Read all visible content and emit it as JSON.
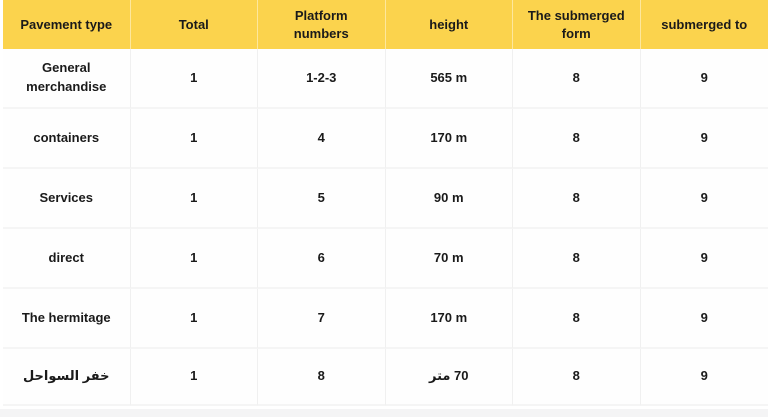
{
  "colors": {
    "header_bg": "#FBD34D",
    "cell_bg": "#FEFEFE",
    "border_v": "#F0F0F0",
    "border_h": "#F5F5F5",
    "page_bg": "#F4F4F5",
    "text": "#1A1A1A"
  },
  "table": {
    "columns": [
      {
        "label": "Pavement type"
      },
      {
        "label": "Total"
      },
      {
        "label": "Platform numbers"
      },
      {
        "label": "height"
      },
      {
        "label": "The submerged form"
      },
      {
        "label": "submerged to"
      }
    ],
    "rows": [
      [
        "General merchandise",
        "1",
        "1-2-3",
        "565 m",
        "8",
        "9"
      ],
      [
        "containers",
        "1",
        "4",
        "170 m",
        "8",
        "9"
      ],
      [
        "Services",
        "1",
        "5",
        "90 m",
        "8",
        "9"
      ],
      [
        "direct",
        "1",
        "6",
        "70 m",
        "8",
        "9"
      ],
      [
        "The hermitage",
        "1",
        "7",
        "170 m",
        "8",
        "9"
      ],
      [
        "خفر السواحل",
        "1",
        "8",
        "70 متر",
        "8",
        "9"
      ]
    ]
  }
}
